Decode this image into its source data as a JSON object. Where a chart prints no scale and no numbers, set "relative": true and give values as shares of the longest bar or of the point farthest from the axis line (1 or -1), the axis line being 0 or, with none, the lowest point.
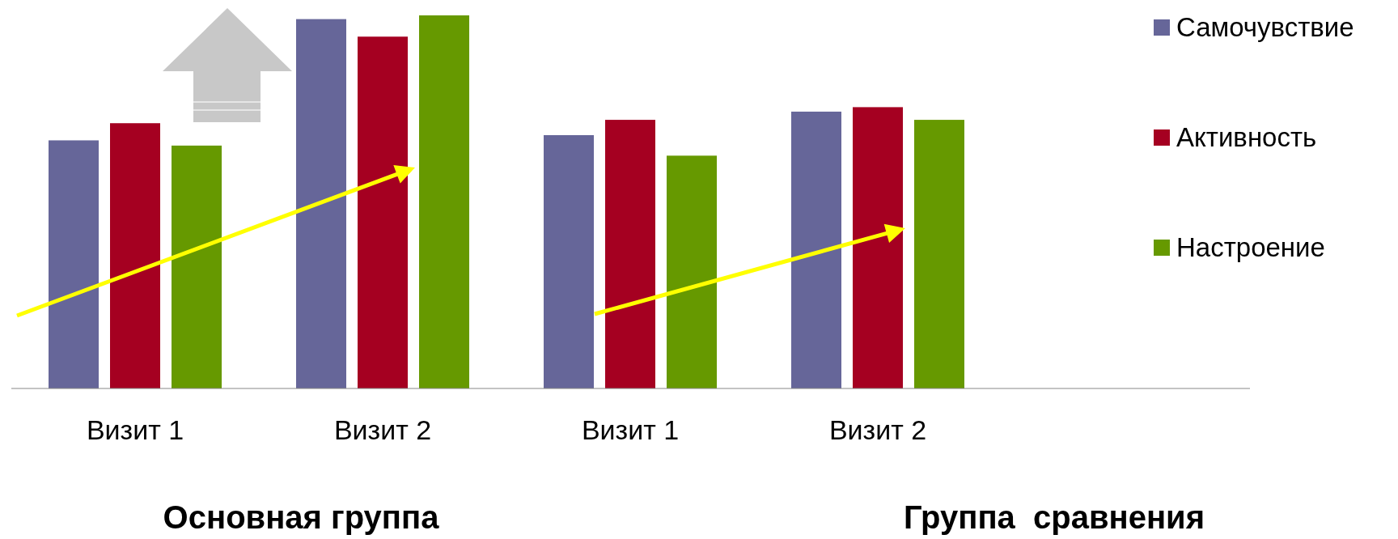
{
  "chart_data": {
    "type": "bar",
    "relative": true,
    "categories": [
      "Визит 1",
      "Визит 2",
      "Визит 1",
      "Визит 2"
    ],
    "series": [
      {
        "name": "Самочувствие",
        "color": "#666699",
        "values": [
          0.665,
          0.99,
          0.679,
          0.742
        ]
      },
      {
        "name": "Активность",
        "color": "#a50021",
        "values": [
          0.711,
          0.943,
          0.72,
          0.754
        ]
      },
      {
        "name": "Настроение",
        "color": "#669900",
        "values": [
          0.651,
          1,
          0.624,
          0.72
        ]
      }
    ],
    "legend": "right",
    "annotations": [
      "Основная группа",
      "Группа  сравнения"
    ]
  }
}
